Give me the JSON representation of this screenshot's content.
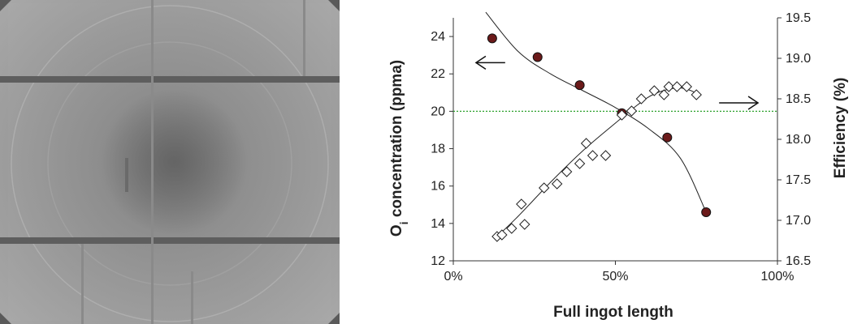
{
  "chart_data": {
    "type": "scatter",
    "title": "",
    "xlabel": "Full ingot length",
    "ylabel_left": {
      "main": "O",
      "sub": "i",
      "rest": " concentration (ppma)"
    },
    "ylabel_right": "Efficiency (%)",
    "x_unit": "%",
    "xlim": [
      0,
      100
    ],
    "ylim_left": [
      12,
      25
    ],
    "ylim_right": [
      16.5,
      19.5
    ],
    "x_ticks": [
      0,
      50,
      100
    ],
    "x_tick_labels": [
      "0%",
      "50%",
      "100%"
    ],
    "y_left_ticks": [
      12,
      14,
      16,
      18,
      20,
      22,
      24
    ],
    "y_left_tick_labels": [
      "12",
      "14",
      "16",
      "18",
      "20",
      "22",
      "24"
    ],
    "y_right_ticks": [
      16.5,
      17.0,
      17.5,
      18.0,
      18.5,
      19.0,
      19.5
    ],
    "y_right_tick_labels": [
      "16.5",
      "17.0",
      "17.5",
      "18.0",
      "18.5",
      "19.0",
      "19.5"
    ],
    "grid": false,
    "reference_line": {
      "axis": "left",
      "y": 20,
      "color": "#2ca02c",
      "style": "dotted"
    },
    "series": [
      {
        "axis": "left",
        "marker": "circle",
        "color": "#6b1a1a",
        "points": [
          [
            12,
            23.9
          ],
          [
            26,
            22.9
          ],
          [
            39,
            21.4
          ],
          [
            52,
            19.9
          ],
          [
            66,
            18.6
          ],
          [
            78,
            14.6
          ]
        ],
        "fit": [
          [
            10,
            25.3
          ],
          [
            20,
            23.2
          ],
          [
            30,
            22.0
          ],
          [
            40,
            21.1
          ],
          [
            50,
            20.2
          ],
          [
            60,
            19.1
          ],
          [
            70,
            17.5
          ],
          [
            78,
            14.6
          ]
        ]
      },
      {
        "axis": "right",
        "marker": "diamond",
        "color": "#222222",
        "points": [
          [
            13.5,
            16.8
          ],
          [
            15,
            16.82
          ],
          [
            18,
            16.9
          ],
          [
            21,
            17.2
          ],
          [
            22,
            16.95
          ],
          [
            28,
            17.4
          ],
          [
            32,
            17.45
          ],
          [
            35,
            17.6
          ],
          [
            39,
            17.7
          ],
          [
            41,
            17.95
          ],
          [
            43,
            17.8
          ],
          [
            47,
            17.8
          ],
          [
            52,
            18.3
          ],
          [
            55,
            18.35
          ],
          [
            58,
            18.5
          ],
          [
            62,
            18.6
          ],
          [
            65,
            18.55
          ],
          [
            66.5,
            18.65
          ],
          [
            69,
            18.65
          ],
          [
            72,
            18.65
          ],
          [
            75,
            18.55
          ]
        ],
        "fit": [
          [
            13.5,
            16.8
          ],
          [
            20,
            17.05
          ],
          [
            30,
            17.47
          ],
          [
            40,
            17.86
          ],
          [
            50,
            18.2
          ],
          [
            57,
            18.43
          ],
          [
            62,
            18.56
          ],
          [
            68,
            18.63
          ],
          [
            72,
            18.62
          ],
          [
            76,
            18.55
          ]
        ]
      }
    ],
    "annotations": [
      {
        "type": "arrow",
        "direction": "left",
        "axis": "left",
        "x1": 16,
        "x2": 7,
        "y": 22.6
      },
      {
        "type": "arrow",
        "direction": "right",
        "axis": "right",
        "x1": 82,
        "x2": 94,
        "y": 18.45
      }
    ]
  }
}
